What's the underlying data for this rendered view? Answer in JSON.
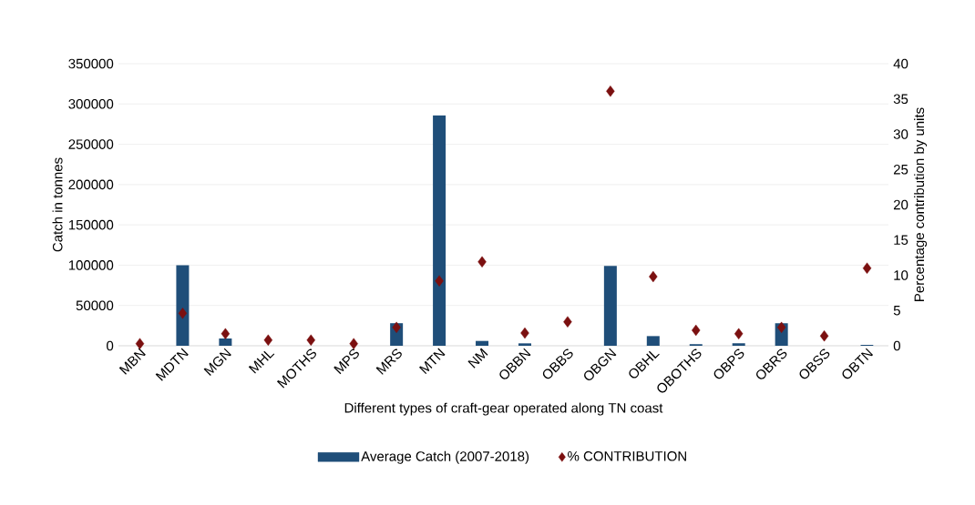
{
  "chart_data": {
    "type": "bar",
    "xlabel": "Different types of craft-gear operated along TN coast",
    "ylabel": "Catch in tonnes",
    "y2label": "Percentage contribution by units",
    "categories": [
      "MBN",
      "MDTN",
      "MGN",
      "MHL",
      "MOTHS",
      "MPS",
      "MRS",
      "MTN",
      "NM",
      "OBBN",
      "OBBS",
      "OBGN",
      "OBHL",
      "OBOTHS",
      "OBPS",
      "OBRS",
      "OBSS",
      "OBTN"
    ],
    "series": [
      {
        "name": "Average Catch (2007-2018)",
        "color": "#1f4e79",
        "values": [
          0,
          100000,
          9000,
          0,
          0,
          0,
          28000,
          286000,
          6000,
          3000,
          0,
          99000,
          12000,
          2000,
          3000,
          28000,
          0,
          1000
        ]
      },
      {
        "name": "% CONTRIBUTION",
        "type": "scatter",
        "axis": "y2",
        "marker": "diamond",
        "color": "#7b1010",
        "values": [
          0.3,
          4.6,
          1.7,
          0.8,
          0.8,
          0.3,
          2.6,
          9.2,
          11.9,
          1.8,
          3.4,
          36.1,
          9.8,
          2.2,
          1.7,
          2.6,
          1.4,
          11.0
        ]
      }
    ],
    "ylim": [
      0,
      350000
    ],
    "yticks": [
      0,
      50000,
      100000,
      150000,
      200000,
      250000,
      300000,
      350000
    ],
    "y2lim": [
      0,
      40
    ],
    "y2ticks": [
      0,
      5,
      10,
      15,
      20,
      25,
      30,
      35,
      40
    ],
    "grid": "y",
    "legend": "bottom"
  }
}
